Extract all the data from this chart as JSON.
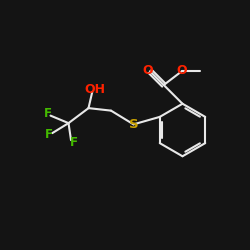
{
  "background_color": "#141414",
  "bond_color": "#e8e8e8",
  "atom_colors": {
    "O": "#ff2200",
    "S": "#c8a000",
    "F": "#44bb00",
    "C": "#e8e8e8",
    "H": "#e8e8e8"
  },
  "figsize": [
    2.5,
    2.5
  ],
  "dpi": 100,
  "bond_lw": 1.5,
  "font_size": 8.5
}
